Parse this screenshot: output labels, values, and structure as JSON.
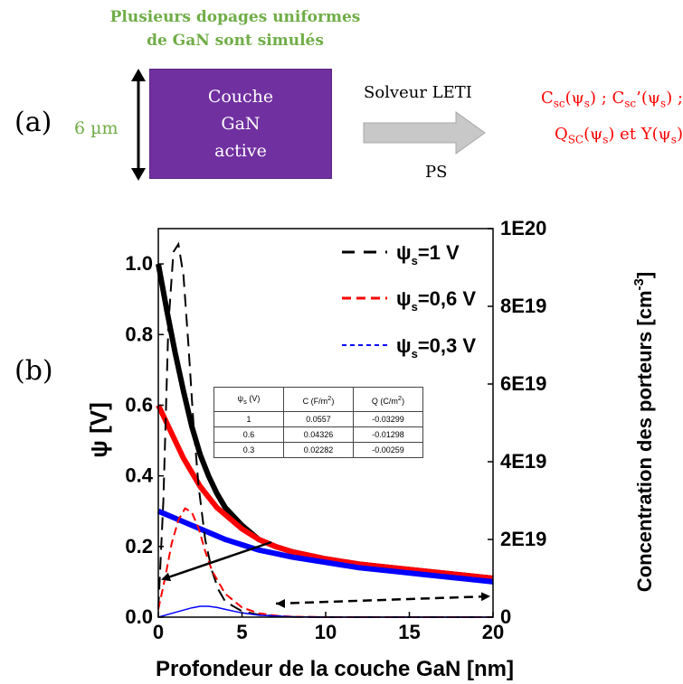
{
  "panel_a": {
    "label": "(a)",
    "note_line1": "Plusieurs dopages uniformes",
    "note_line2": "de GaN sont simulés",
    "thickness": "6 µm",
    "box_line1": "Couche",
    "box_line2": "GaN",
    "box_line3": "active",
    "solver": "Solveur LETI",
    "ps": "PS",
    "out1_html": "C<sub>sc</sub>(ψ<sub>s</sub>) ; C<sub>sc</sub>’(ψ<sub>s</sub>) ;",
    "out2_html": "Q<sub>SC</sub>(ψ<sub>s</sub>) et Y(ψ<sub>s</sub>)",
    "colors": {
      "green": "#70ad47",
      "purple": "#7030a0",
      "red": "#ff0000",
      "arrow": "#c8c8c8"
    }
  },
  "panel_b": {
    "label": "(b)"
  },
  "chart_data": {
    "type": "line",
    "title": "",
    "xlabel": "Profondeur de la couche GaN [nm]",
    "ylabel": "ψ [V]",
    "y2label": "Concentration des porteurs [cm-3]",
    "xlim": [
      0,
      20
    ],
    "ylim": [
      0,
      1.1
    ],
    "y2lim": [
      0,
      1e+20
    ],
    "x_ticks": [
      "0",
      "5",
      "10",
      "15",
      "20"
    ],
    "y_ticks": [
      "0.0",
      "0.2",
      "0.4",
      "0.6",
      "0.8",
      "1.0"
    ],
    "y2_ticks": [
      "0",
      "2E19",
      "4E19",
      "6E19",
      "8E19",
      "1E20"
    ],
    "legend_position": "top-right",
    "legend": [
      {
        "label": "ψs=1 V",
        "color": "#000000"
      },
      {
        "label": "ψs=0,6 V",
        "color": "#ff0000"
      },
      {
        "label": "ψs=0,3 V",
        "color": "#0000ff"
      }
    ],
    "series": [
      {
        "name": "ψs=1 V",
        "axis": "left",
        "color": "#000000",
        "x": [
          0,
          0.5,
          1,
          1.5,
          2,
          2.5,
          3,
          3.5,
          4,
          5,
          6,
          7,
          8,
          10,
          12,
          14,
          16,
          18,
          20
        ],
        "y": [
          1.0,
          0.87,
          0.75,
          0.64,
          0.54,
          0.46,
          0.4,
          0.35,
          0.31,
          0.26,
          0.22,
          0.2,
          0.185,
          0.165,
          0.15,
          0.14,
          0.13,
          0.12,
          0.11
        ]
      },
      {
        "name": "ψs=0,6 V",
        "axis": "left",
        "color": "#ff0000",
        "x": [
          0,
          0.5,
          1,
          1.5,
          2,
          2.5,
          3,
          3.5,
          4,
          5,
          6,
          7,
          8,
          10,
          12,
          14,
          16,
          18,
          20
        ],
        "y": [
          0.6,
          0.55,
          0.5,
          0.45,
          0.41,
          0.37,
          0.34,
          0.31,
          0.29,
          0.25,
          0.22,
          0.2,
          0.185,
          0.165,
          0.15,
          0.14,
          0.13,
          0.12,
          0.11
        ]
      },
      {
        "name": "ψs=0,3 V",
        "axis": "left",
        "color": "#0000ff",
        "x": [
          0,
          1,
          2,
          3,
          4,
          5,
          6,
          7,
          8,
          10,
          12,
          14,
          16,
          18,
          20
        ],
        "y": [
          0.3,
          0.28,
          0.26,
          0.24,
          0.22,
          0.205,
          0.19,
          0.18,
          0.17,
          0.155,
          0.14,
          0.13,
          0.12,
          0.11,
          0.1
        ]
      },
      {
        "name": "ψs=1 V",
        "axis": "right",
        "color": "#000000",
        "x": [
          0,
          0.3,
          0.6,
          0.9,
          1.2,
          1.5,
          1.8,
          2.1,
          2.4,
          2.8,
          3.2,
          3.6,
          4,
          5,
          6,
          7,
          8,
          10,
          20
        ],
        "y": [
          2e+18,
          3e+19,
          7.5e+19,
          9.4e+19,
          9.6e+19,
          8.8e+19,
          7e+19,
          5e+19,
          3.4e+19,
          2e+19,
          1.2e+19,
          7e+18,
          4e+18,
          1.5e+18,
          6e+17,
          3e+17,
          1e+17,
          0,
          0
        ]
      },
      {
        "name": "ψs=0,6 V",
        "axis": "right",
        "color": "#ff0000",
        "x": [
          0,
          0.4,
          0.8,
          1.2,
          1.6,
          2,
          2.4,
          2.8,
          3.2,
          4,
          5,
          6,
          7,
          8,
          10,
          20
        ],
        "y": [
          2e+18,
          1e+19,
          1.9e+19,
          2.5e+19,
          2.8e+19,
          2.7e+19,
          2.3e+19,
          1.7e+19,
          1.2e+19,
          6e+18,
          2.5e+18,
          1e+18,
          4e+17,
          1e+17,
          0,
          0
        ]
      },
      {
        "name": "ψs=0,3 V",
        "axis": "right",
        "color": "#0000ff",
        "x": [
          0,
          1,
          2,
          2.5,
          3,
          3.5,
          4,
          5,
          6,
          8,
          10,
          20
        ],
        "y": [
          0,
          1.2e+18,
          2.4e+18,
          2.8e+18,
          2.8e+18,
          2.5e+18,
          2e+18,
          1.1e+18,
          5e+17,
          1e+17,
          0,
          0
        ]
      }
    ],
    "inset_table": {
      "headers": [
        "ψs (V)",
        "C (F/m2)",
        "Q (C/m2)"
      ],
      "rows": [
        [
          "1",
          "0.0557",
          "-0.03299"
        ],
        [
          "0.6",
          "0.04326",
          "-0.01298"
        ],
        [
          "0.3",
          "0.02282",
          "-0.00259"
        ]
      ]
    }
  }
}
